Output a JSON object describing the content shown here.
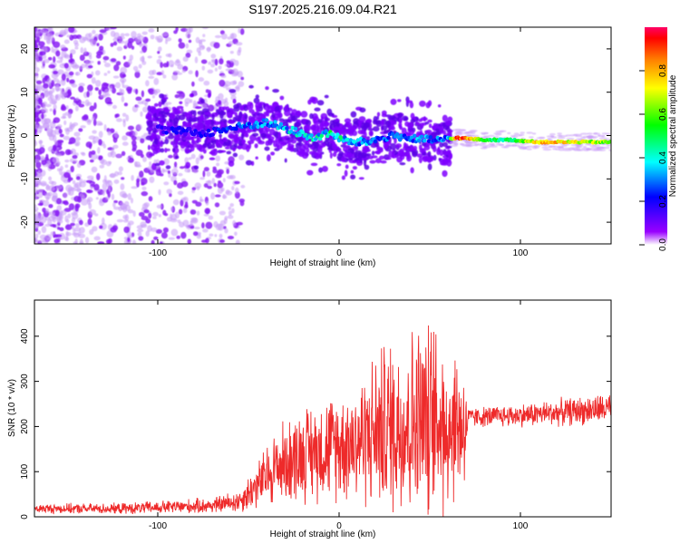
{
  "title": "S197.2025.216.09.04.R21",
  "colors": {
    "spectrogram_low": "#7f00ff",
    "spectrogram_high": "#ff0000",
    "snr_line": "#ee2a2a"
  },
  "chart_data": [
    {
      "type": "heatmap",
      "name": "spectrogram",
      "xlabel": "Height of straight line (km)",
      "ylabel": "Frequency (Hz)",
      "xlim": [
        -168,
        150
      ],
      "ylim": [
        -25,
        25
      ],
      "xticks": [
        -100,
        0,
        100
      ],
      "yticks": [
        -20,
        -10,
        0,
        10,
        20
      ],
      "colorbar": {
        "label": "Normalized spectral amplitude",
        "range": [
          0,
          1
        ],
        "ticks": [
          0.0,
          0.2,
          0.4,
          0.6,
          0.8
        ],
        "colormap": "rainbow (purple-blue-cyan-green-yellow-red)"
      },
      "ridge": [
        {
          "x": -100,
          "freq": 1.5,
          "amp": 0.15
        },
        {
          "x": -75,
          "freq": 0.5,
          "amp": 0.15
        },
        {
          "x": -55,
          "freq": 2.0,
          "amp": 0.25
        },
        {
          "x": -40,
          "freq": 3.0,
          "amp": 0.3
        },
        {
          "x": -25,
          "freq": 1.0,
          "amp": 0.4
        },
        {
          "x": -15,
          "freq": -0.5,
          "amp": 0.4
        },
        {
          "x": -5,
          "freq": 0.5,
          "amp": 0.45
        },
        {
          "x": 5,
          "freq": -1.5,
          "amp": 0.35
        },
        {
          "x": 15,
          "freq": -1.5,
          "amp": 0.3
        },
        {
          "x": 30,
          "freq": 0.0,
          "amp": 0.3
        },
        {
          "x": 45,
          "freq": -1.0,
          "amp": 0.3
        },
        {
          "x": 60,
          "freq": -1.0,
          "amp": 0.3
        },
        {
          "x": 65,
          "freq": -0.5,
          "amp": 1.0
        },
        {
          "x": 80,
          "freq": -1.0,
          "amp": 0.5
        },
        {
          "x": 95,
          "freq": -1.0,
          "amp": 0.45
        },
        {
          "x": 110,
          "freq": -1.5,
          "amp": 0.8
        },
        {
          "x": 150,
          "freq": -1.5,
          "amp": 0.6
        }
      ]
    },
    {
      "type": "line",
      "name": "snr",
      "xlabel": "Height of straight line (km)",
      "ylabel": "SNR (10 * v/v)",
      "xlim": [
        -168,
        150
      ],
      "ylim": [
        0,
        480
      ],
      "xticks": [
        -100,
        0,
        100
      ],
      "yticks": [
        0,
        100,
        200,
        300,
        400
      ],
      "envelope": [
        {
          "x": -168,
          "base": 18,
          "amp": 12
        },
        {
          "x": -120,
          "base": 18,
          "amp": 14
        },
        {
          "x": -90,
          "base": 22,
          "amp": 18
        },
        {
          "x": -70,
          "base": 25,
          "amp": 20
        },
        {
          "x": -55,
          "base": 35,
          "amp": 30
        },
        {
          "x": -45,
          "base": 70,
          "amp": 60
        },
        {
          "x": -35,
          "base": 110,
          "amp": 100
        },
        {
          "x": -20,
          "base": 140,
          "amp": 120
        },
        {
          "x": -10,
          "base": 150,
          "amp": 130
        },
        {
          "x": 0,
          "base": 160,
          "amp": 140
        },
        {
          "x": 10,
          "base": 170,
          "amp": 160
        },
        {
          "x": 25,
          "base": 200,
          "amp": 220
        },
        {
          "x": 45,
          "base": 210,
          "amp": 260
        },
        {
          "x": 60,
          "base": 210,
          "amp": 230
        },
        {
          "x": 70,
          "base": 200,
          "amp": 160
        },
        {
          "x": 71,
          "base": 220,
          "amp": 25
        },
        {
          "x": 100,
          "base": 225,
          "amp": 30
        },
        {
          "x": 150,
          "base": 240,
          "amp": 40
        }
      ]
    }
  ]
}
